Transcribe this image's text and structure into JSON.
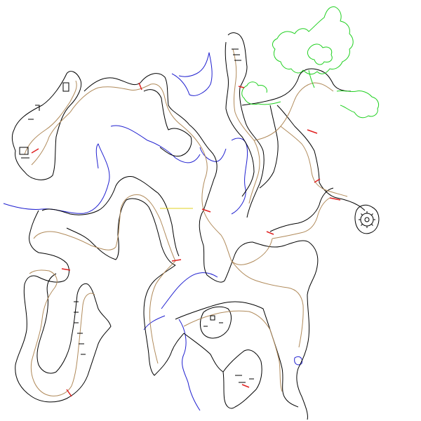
{
  "map": {
    "colors": {
      "walls": "#000000",
      "contours": "#b08a5a",
      "water": "#2020d0",
      "vegetation": "#20d020",
      "connectors": "#e02020",
      "marker": "#e0d020",
      "background": "#ffffff"
    },
    "layers": [
      "walls",
      "contours",
      "water",
      "vegetation",
      "connectors",
      "marker",
      "details"
    ],
    "icons": [
      "gear-icon"
    ]
  }
}
